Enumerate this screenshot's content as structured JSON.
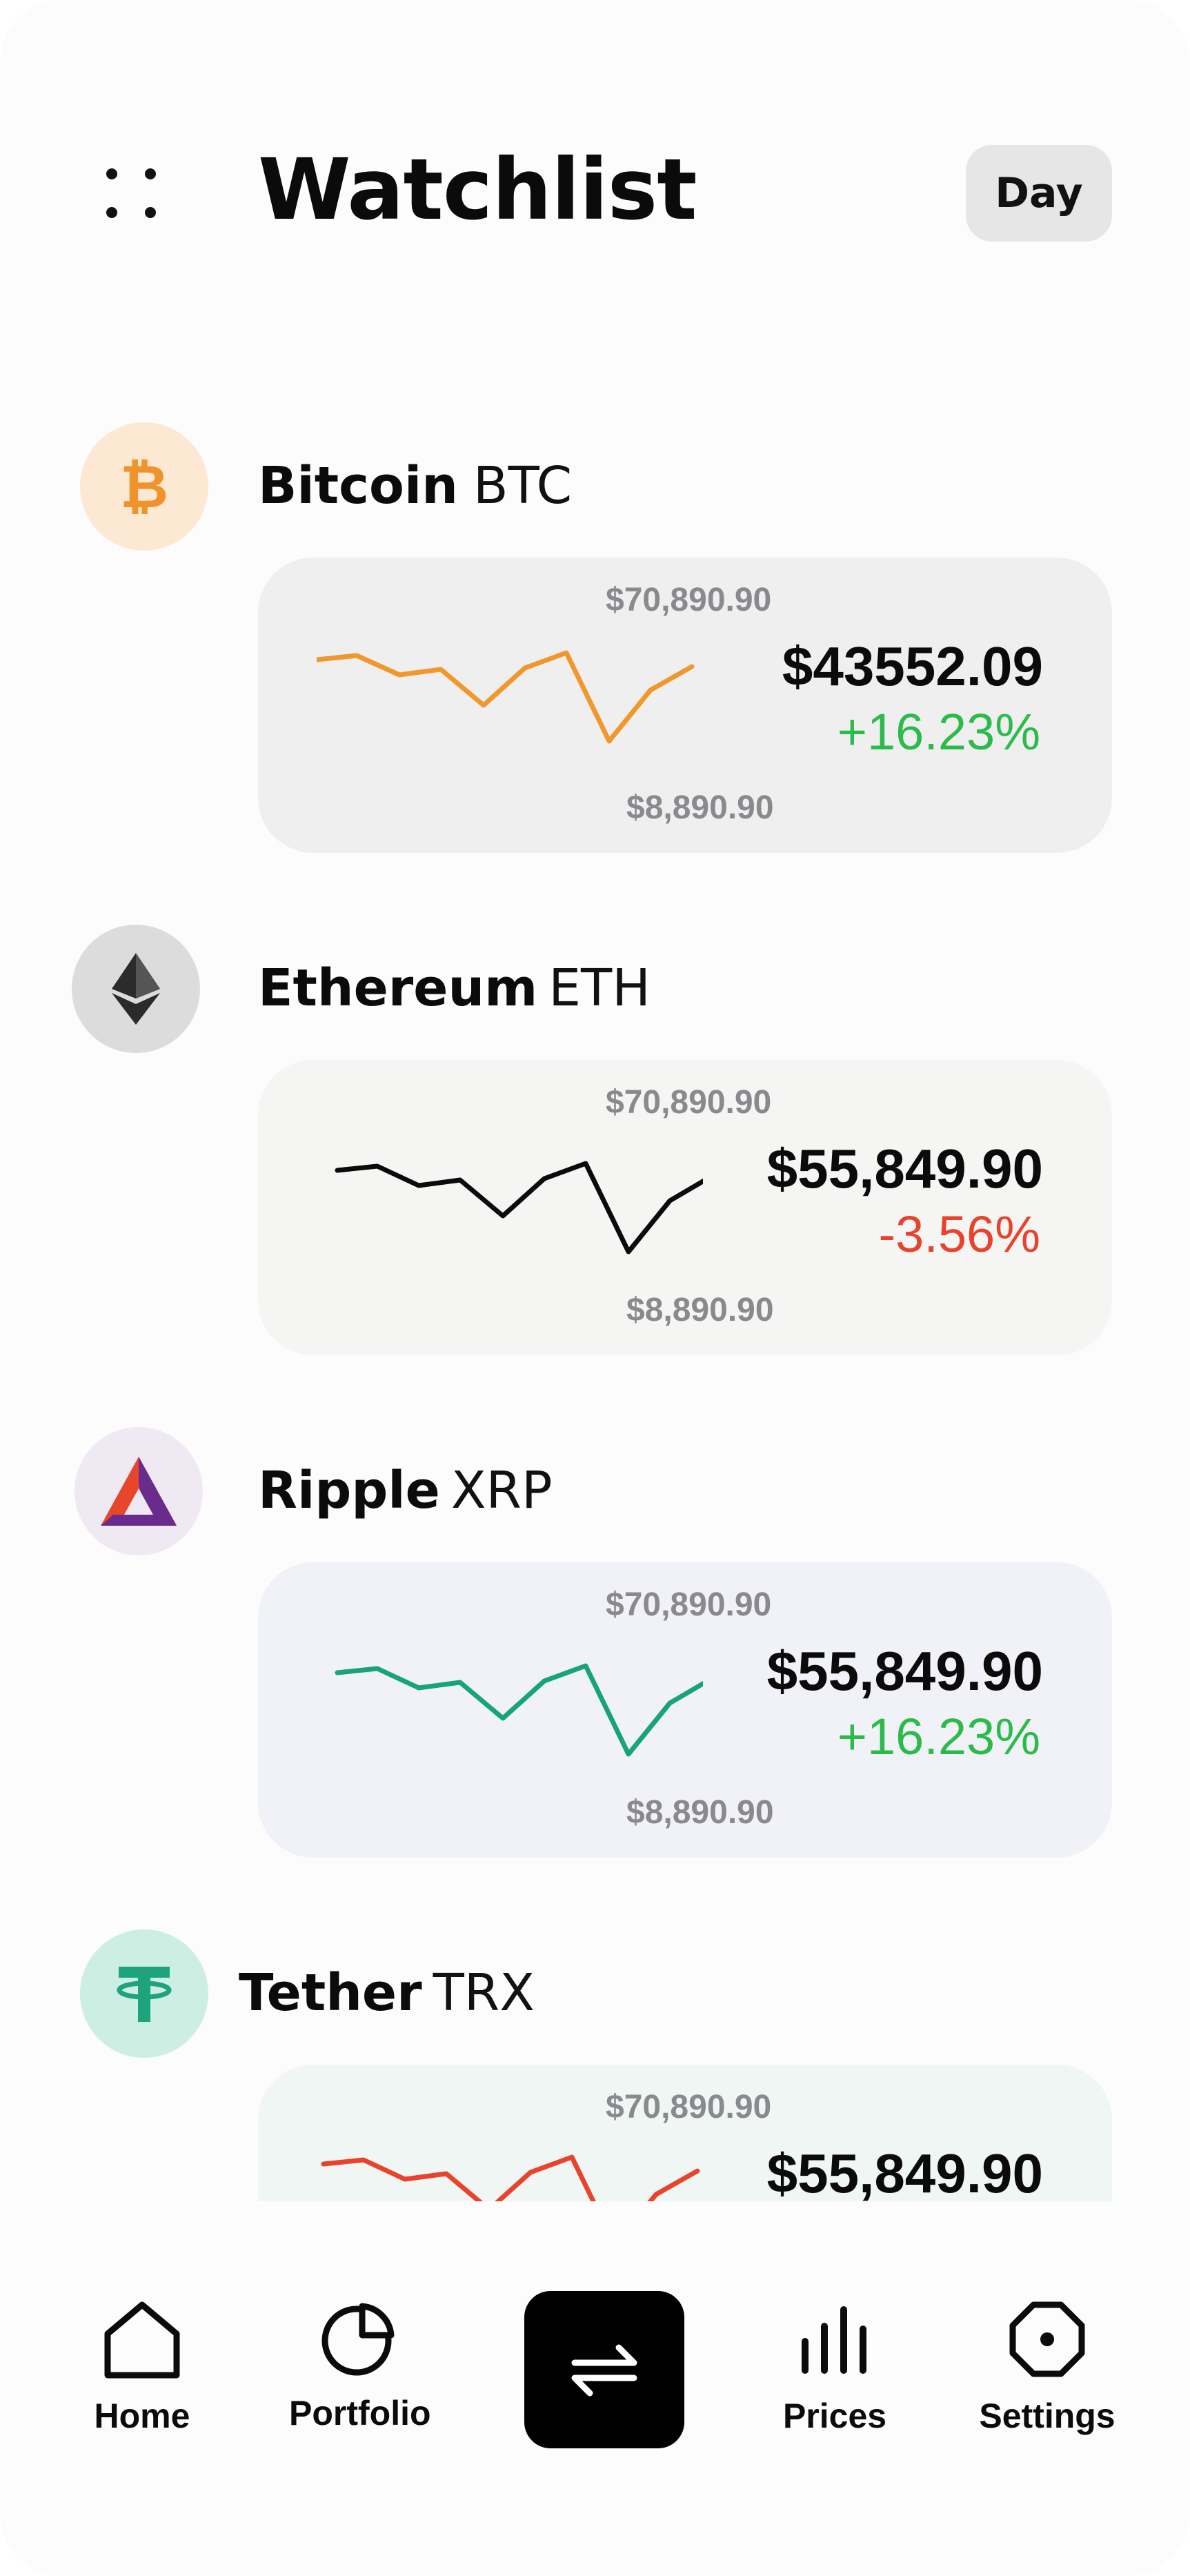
{
  "header": {
    "title": "Watchlist",
    "period_button": "Day"
  },
  "coins": [
    {
      "name": "Bitcoin",
      "symbol": "BTC",
      "icon": "bitcoin-icon",
      "high": "$70,890.90",
      "low": "$8,890.90",
      "price": "$43552.09",
      "change": "+16.23%",
      "change_color": "#2cbb4a",
      "line_color": "#f0982e",
      "icon_bg": "#fde8d4",
      "card_bg": "#efeff0"
    },
    {
      "name": "Ethereum",
      "symbol": "ETH",
      "icon": "ethereum-icon",
      "high": "$70,890.90",
      "low": "$8,890.90",
      "price": "$55,849.90",
      "change": "-3.56%",
      "change_color": "#e8432c",
      "line_color": "#0b0b0b",
      "icon_bg": "#dcdcdc",
      "card_bg": "#f5f5f4"
    },
    {
      "name": "Ripple",
      "symbol": "XRP",
      "icon": "ripple-icon",
      "high": "$70,890.90",
      "low": "$8,890.90",
      "price": "$55,849.90",
      "change": "+16.23%",
      "change_color": "#2cbb4a",
      "line_color": "#17a47a",
      "icon_bg": "#efe9f3",
      "card_bg": "#f1f2f7"
    },
    {
      "name": "Tether",
      "symbol": "TRX",
      "icon": "tether-icon",
      "high": "$70,890.90",
      "price": "$55,849.90",
      "line_color": "#e8432c",
      "icon_bg": "#cdeee2",
      "card_bg": "#eff6f3"
    }
  ],
  "nav": {
    "home": "Home",
    "portfolio": "Portfolio",
    "prices": "Prices",
    "settings": "Settings",
    "center_icon": "swap-arrows-icon"
  }
}
